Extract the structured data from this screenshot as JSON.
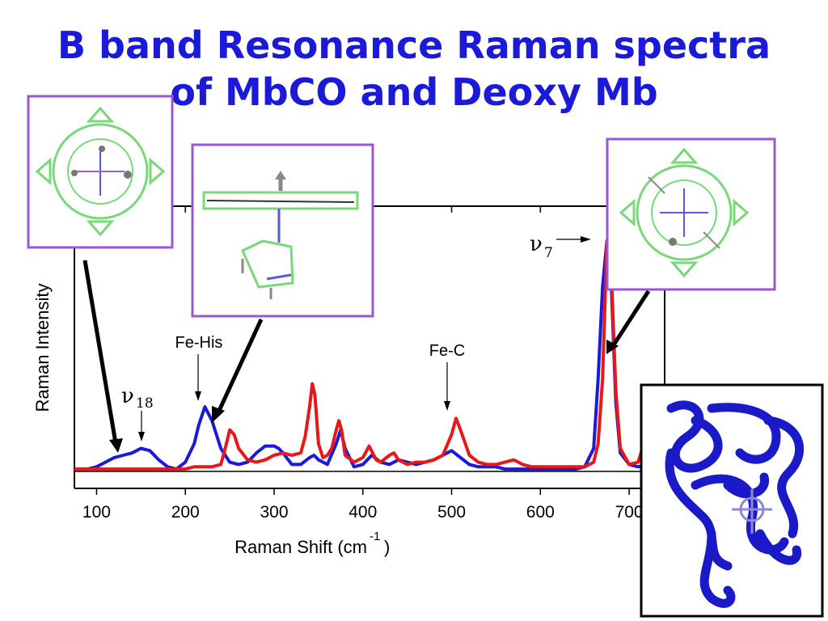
{
  "title": {
    "line1": "B band Resonance Raman spectra",
    "line2": "of MbCO and Deoxy Mb"
  },
  "colors": {
    "title": "#1a1ad8",
    "mbco_blue": "#1a1ad8",
    "deoxy_red": "#e81818",
    "inset_border": "#9a55d8",
    "protein": "#1a1ac8"
  },
  "insets": [
    {
      "name": "porphyrin-top-view-left",
      "description_icon": "heme-molecule-icon"
    },
    {
      "name": "heme-side-view-with-histidine",
      "description_icon": "heme-histidine-icon"
    },
    {
      "name": "porphyrin-top-view-right",
      "description_icon": "heme-molecule-icon"
    },
    {
      "name": "myoglobin-protein-cartoon",
      "description_icon": "protein-ribbon-icon"
    }
  ],
  "chart_data": {
    "type": "line",
    "xlabel": "Raman Shift (cm",
    "xlabel_sup": "-1",
    "xlabel_close": ")",
    "ylabel": "Raman Intensity",
    "xlim": [
      75,
      740
    ],
    "ylim": [
      0,
      1.08
    ],
    "xticks": [
      100,
      200,
      300,
      400,
      500,
      600,
      700
    ],
    "grid": false,
    "annotations": [
      {
        "greek": "ν",
        "sub": "18",
        "x": 150
      },
      {
        "text": "Fe-His",
        "x": 222
      },
      {
        "text": "Fe-C",
        "x": 505
      },
      {
        "greek": "ν",
        "sub": "7",
        "x": 675
      }
    ],
    "series": [
      {
        "color": "#1a1ad8",
        "x": [
          75,
          90,
          100,
          110,
          120,
          130,
          140,
          150,
          160,
          170,
          180,
          190,
          200,
          210,
          215,
          222,
          230,
          240,
          250,
          260,
          270,
          280,
          290,
          300,
          305,
          310,
          320,
          330,
          340,
          345,
          350,
          360,
          370,
          375,
          380,
          390,
          400,
          410,
          420,
          430,
          440,
          450,
          460,
          470,
          480,
          490,
          500,
          510,
          520,
          530,
          540,
          550,
          560,
          570,
          580,
          590,
          600,
          610,
          620,
          630,
          640,
          650,
          660,
          665,
          670,
          675,
          680,
          685,
          690,
          700,
          710,
          720,
          730,
          740
        ],
        "y": [
          0.01,
          0.01,
          0.02,
          0.04,
          0.06,
          0.07,
          0.08,
          0.1,
          0.09,
          0.05,
          0.02,
          0.01,
          0.04,
          0.12,
          0.2,
          0.28,
          0.22,
          0.1,
          0.04,
          0.03,
          0.04,
          0.08,
          0.11,
          0.11,
          0.1,
          0.08,
          0.03,
          0.03,
          0.06,
          0.07,
          0.05,
          0.03,
          0.12,
          0.18,
          0.1,
          0.02,
          0.03,
          0.07,
          0.04,
          0.03,
          0.05,
          0.04,
          0.03,
          0.04,
          0.05,
          0.07,
          0.09,
          0.06,
          0.03,
          0.02,
          0.02,
          0.02,
          0.01,
          0.01,
          0.01,
          0.01,
          0.01,
          0.01,
          0.01,
          0.01,
          0.01,
          0.02,
          0.1,
          0.4,
          0.8,
          1.0,
          0.8,
          0.3,
          0.08,
          0.03,
          0.02,
          0.03,
          0.03,
          0.03
        ]
      },
      {
        "color": "#e81818",
        "x": [
          75,
          90,
          100,
          110,
          120,
          130,
          140,
          150,
          160,
          170,
          180,
          190,
          200,
          210,
          220,
          230,
          240,
          245,
          250,
          255,
          260,
          270,
          280,
          290,
          300,
          310,
          320,
          330,
          335,
          340,
          343,
          346,
          350,
          355,
          360,
          365,
          370,
          373,
          376,
          380,
          390,
          400,
          407,
          415,
          420,
          430,
          435,
          440,
          450,
          460,
          470,
          480,
          490,
          500,
          505,
          510,
          520,
          530,
          540,
          550,
          560,
          570,
          580,
          590,
          600,
          610,
          620,
          630,
          640,
          650,
          660,
          665,
          670,
          675,
          680,
          685,
          690,
          700,
          710,
          715,
          720,
          725,
          730,
          740
        ],
        "y": [
          0.01,
          0.01,
          0.01,
          0.01,
          0.01,
          0.01,
          0.01,
          0.01,
          0.01,
          0.01,
          0.01,
          0.01,
          0.01,
          0.02,
          0.02,
          0.02,
          0.03,
          0.1,
          0.18,
          0.16,
          0.1,
          0.05,
          0.04,
          0.05,
          0.07,
          0.08,
          0.07,
          0.08,
          0.15,
          0.28,
          0.38,
          0.33,
          0.12,
          0.06,
          0.07,
          0.1,
          0.18,
          0.22,
          0.18,
          0.07,
          0.04,
          0.06,
          0.11,
          0.05,
          0.04,
          0.07,
          0.08,
          0.05,
          0.03,
          0.04,
          0.04,
          0.05,
          0.07,
          0.16,
          0.23,
          0.18,
          0.07,
          0.04,
          0.03,
          0.03,
          0.04,
          0.05,
          0.03,
          0.02,
          0.02,
          0.02,
          0.02,
          0.02,
          0.02,
          0.02,
          0.04,
          0.12,
          0.4,
          1.0,
          0.85,
          0.35,
          0.1,
          0.03,
          0.04,
          0.1,
          0.12,
          0.07,
          0.04,
          0.03
        ]
      }
    ]
  }
}
